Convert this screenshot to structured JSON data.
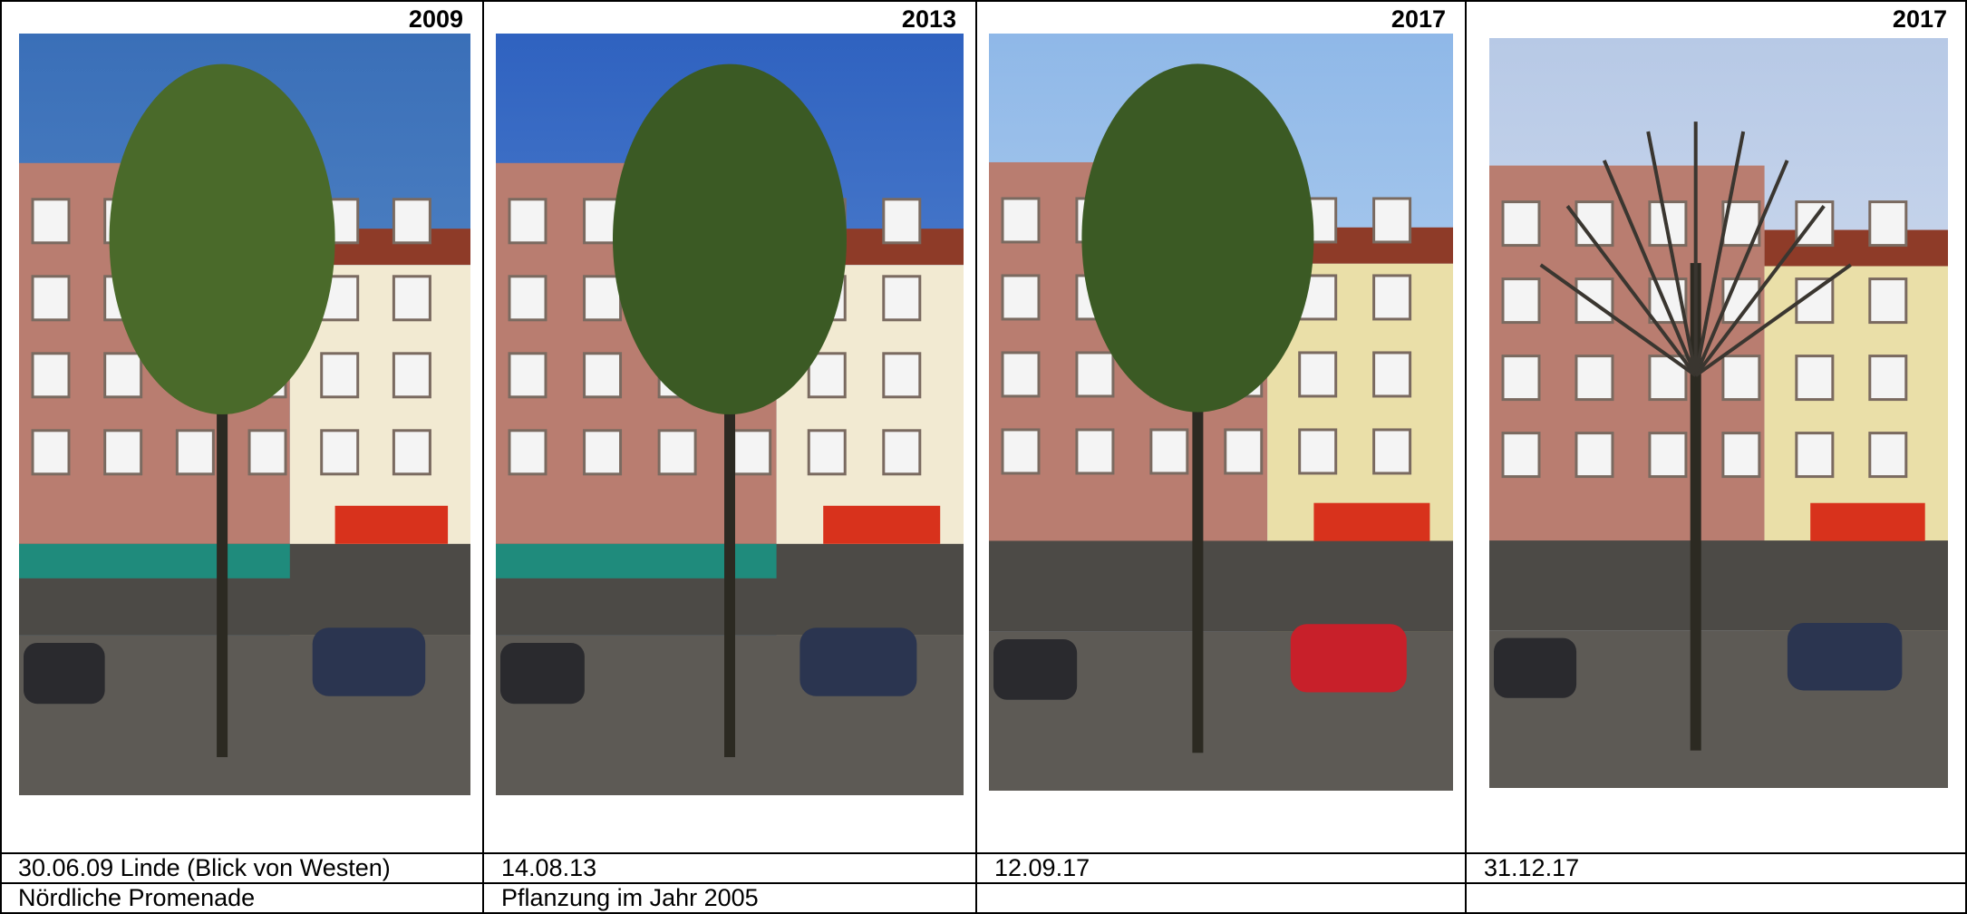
{
  "columns": [
    {
      "year": "2009",
      "captions": [
        "30.06.09  Linde (Blick von Westen)",
        "Nördliche Promenade"
      ]
    },
    {
      "year": "2013",
      "captions": [
        "14.08.13",
        "Pflanzung im Jahr 2005"
      ]
    },
    {
      "year": "2017",
      "captions": [
        "12.09.17"
      ]
    },
    {
      "year": "2017",
      "captions": [
        "31.12.17"
      ]
    }
  ]
}
